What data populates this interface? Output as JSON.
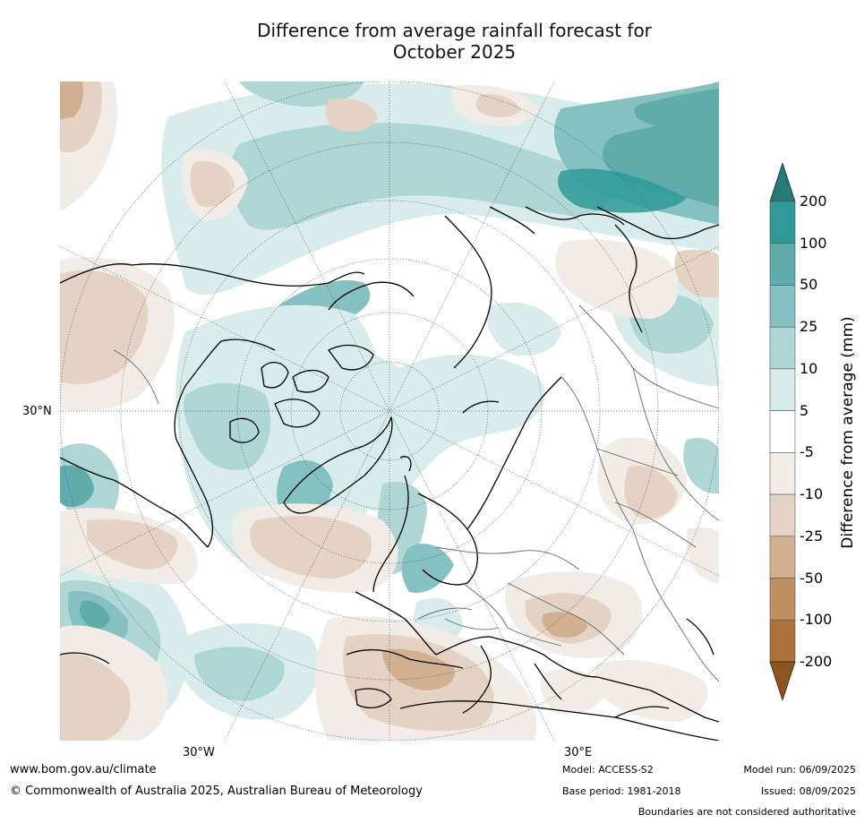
{
  "title_line1": "Difference from average rainfall forecast for",
  "title_line2": "October 2025",
  "axis_labels": {
    "lat_30n": "30°N",
    "lon_30w": "30°W",
    "lon_30e": "30°E"
  },
  "colorbar": {
    "label": "Difference from average (mm)",
    "ticks": [
      "200",
      "100",
      "50",
      "25",
      "10",
      "5",
      "-5",
      "-10",
      "-25",
      "-50",
      "-100",
      "-200"
    ],
    "colors": [
      "#267b7a",
      "#2e9997",
      "#5eacab",
      "#85c1c0",
      "#add6d5",
      "#d7eceb",
      "#ffffff",
      "#f2ece6",
      "#e4d2c2",
      "#d1b092",
      "#bf8e60",
      "#ab7138",
      "#8e5520"
    ]
  },
  "map": {
    "projection": "north-polar-stereographic",
    "shading_colors": {
      "wet_light": "#d7eceb",
      "wet_mid": "#add6d5",
      "wet_strong": "#85c1c0",
      "wet_heavy": "#5eacab",
      "wet_extreme": "#2e9997",
      "dry_light": "#f2ece6",
      "dry_mid": "#e4d2c2",
      "dry_strong": "#d1b092"
    }
  },
  "footer": {
    "website": "www.bom.gov.au/climate",
    "copyright": "© Commonwealth of Australia 2025, Australian Bureau of Meteorology",
    "model": "Model: ACCESS-S2",
    "base_period": "Base period: 1981-2018",
    "model_run": "Model run: 06/09/2025",
    "issued": "Issued: 08/09/2025",
    "disclaimer": "Boundaries are not considered authoritative"
  }
}
